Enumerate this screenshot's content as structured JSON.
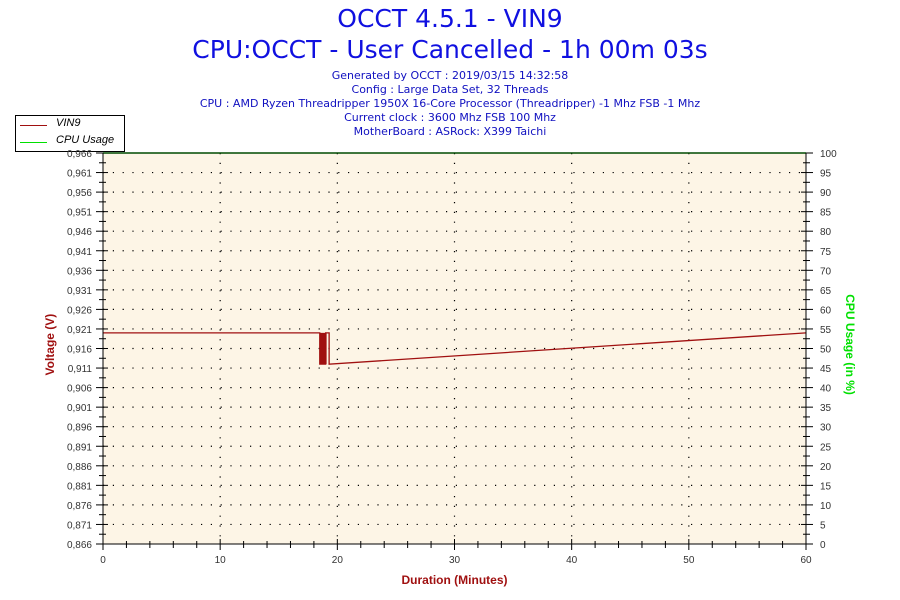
{
  "header": {
    "title": "OCCT 4.5.1 - VIN9",
    "subtitle": "CPU:OCCT - User Cancelled - 1h 00m 03s",
    "info_lines": [
      "Generated by OCCT : 2019/03/15 14:32:58",
      "Config : Large Data Set, 32 Threads",
      "CPU : AMD Ryzen Threadripper 1950X 16-Core Processor (Threadripper) -1 Mhz FSB -1 Mhz",
      "Current clock : 3600 Mhz FSB 100 Mhz",
      "MotherBoard : ASRock: X399 Taichi"
    ]
  },
  "legend": {
    "items": [
      {
        "label": "VIN9",
        "color": "#a01010"
      },
      {
        "label": "CPU Usage",
        "color": "#00e000"
      }
    ]
  },
  "colors": {
    "title": "#1010e0",
    "plot_background": "#fdf5e6",
    "vin9": "#a01010",
    "cpu": "#00e000",
    "left_axis_label": "#a01010",
    "right_axis_label": "#00e000",
    "x_axis_label": "#a01010"
  },
  "chart_data": {
    "type": "line",
    "title": "OCCT 4.5.1 - VIN9",
    "subtitle": "CPU:OCCT - User Cancelled - 1h 00m 03s",
    "xlabel": "Duration (Minutes)",
    "ylabel": "Voltage (V)",
    "y2label": "CPU Usage (in %)",
    "xlim": [
      0,
      60
    ],
    "ylim": [
      0.866,
      0.966
    ],
    "y2lim": [
      0,
      100
    ],
    "x_ticks": [
      "0",
      "10",
      "20",
      "30",
      "40",
      "50",
      "60"
    ],
    "y_ticks": [
      "0,966",
      "0,961",
      "0,956",
      "0,951",
      "0,946",
      "0,941",
      "0,936",
      "0,931",
      "0,926",
      "0,921",
      "0,916",
      "0,911",
      "0,906",
      "0,901",
      "0,896",
      "0,891",
      "0,886",
      "0,881",
      "0,876",
      "0,871",
      "0,866"
    ],
    "y2_ticks": [
      "100",
      "95",
      "90",
      "85",
      "80",
      "75",
      "70",
      "65",
      "60",
      "55",
      "50",
      "45",
      "40",
      "35",
      "30",
      "25",
      "20",
      "15",
      "10",
      "5",
      "0"
    ],
    "grid": "dotted",
    "legend_position": "top-left",
    "series": [
      {
        "name": "VIN9",
        "axis": "left",
        "x": [
          0,
          18.5,
          18.5,
          19.0,
          19.0,
          19.3,
          19.3,
          60
        ],
        "values": [
          0.92,
          0.92,
          0.912,
          0.912,
          0.92,
          0.92,
          0.912,
          0.92
        ]
      },
      {
        "name": "CPU Usage",
        "axis": "right",
        "x": [
          0,
          60
        ],
        "values": [
          100,
          100
        ]
      }
    ]
  }
}
